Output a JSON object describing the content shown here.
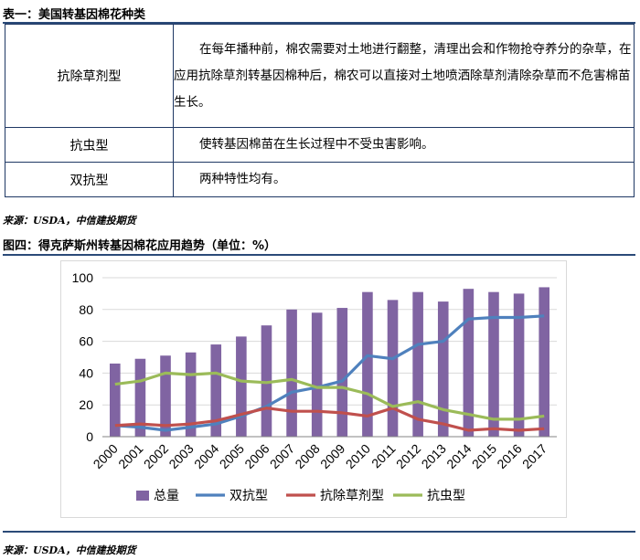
{
  "table": {
    "title": "表一：美国转基因棉花种类",
    "rows": [
      {
        "type": "抗除草剂型",
        "desc": "在每年播种前，棉农需要对土地进行翻整，清理出会和作物抢夺养分的杂草，在应用抗除草剂转基因棉种后，棉农可以直接对土地喷洒除草剂清除杂草而不危害棉苗生长。"
      },
      {
        "type": "抗虫型",
        "desc": "使转基因棉苗在生长过程中不受虫害影响。"
      },
      {
        "type": "双抗型",
        "desc": "两种特性均有。"
      }
    ],
    "source": "来源：USDA，中信建投期货"
  },
  "figure": {
    "title": "图四：得克萨斯州转基因棉花应用趋势（单位：%）",
    "source": "来源：USDA，中信建投期货"
  },
  "chart_data": {
    "type": "bar",
    "title": "",
    "xlabel": "",
    "ylabel": "",
    "ylim": [
      0,
      100
    ],
    "yticks": [
      0,
      20,
      40,
      60,
      80,
      100
    ],
    "categories": [
      "2000",
      "2001",
      "2002",
      "2003",
      "2004",
      "2005",
      "2006",
      "2007",
      "2008",
      "2009",
      "2010",
      "2011",
      "2012",
      "2013",
      "2014",
      "2015",
      "2016",
      "2017"
    ],
    "series": [
      {
        "name": "总量",
        "kind": "bar",
        "color": "#8064a2",
        "values": [
          46,
          49,
          51,
          53,
          58,
          63,
          70,
          80,
          78,
          81,
          91,
          86,
          91,
          85,
          93,
          91,
          90,
          94
        ]
      },
      {
        "name": "双抗型",
        "kind": "line",
        "color": "#4f81bd",
        "values": [
          7,
          6,
          4,
          6,
          8,
          13,
          19,
          28,
          31,
          35,
          51,
          49,
          58,
          60,
          74,
          75,
          75,
          76
        ]
      },
      {
        "name": "抗除草剂型",
        "kind": "line",
        "color": "#c0504d",
        "values": [
          7,
          8,
          7,
          8,
          10,
          14,
          18,
          16,
          16,
          15,
          13,
          18,
          11,
          8,
          4,
          5,
          4,
          5
        ]
      },
      {
        "name": "抗虫型",
        "kind": "line",
        "color": "#9bbb59",
        "values": [
          33,
          35,
          40,
          39,
          40,
          35,
          34,
          36,
          31,
          31,
          27,
          19,
          22,
          17,
          14,
          11,
          11,
          13
        ]
      }
    ],
    "legend_position": "bottom"
  }
}
